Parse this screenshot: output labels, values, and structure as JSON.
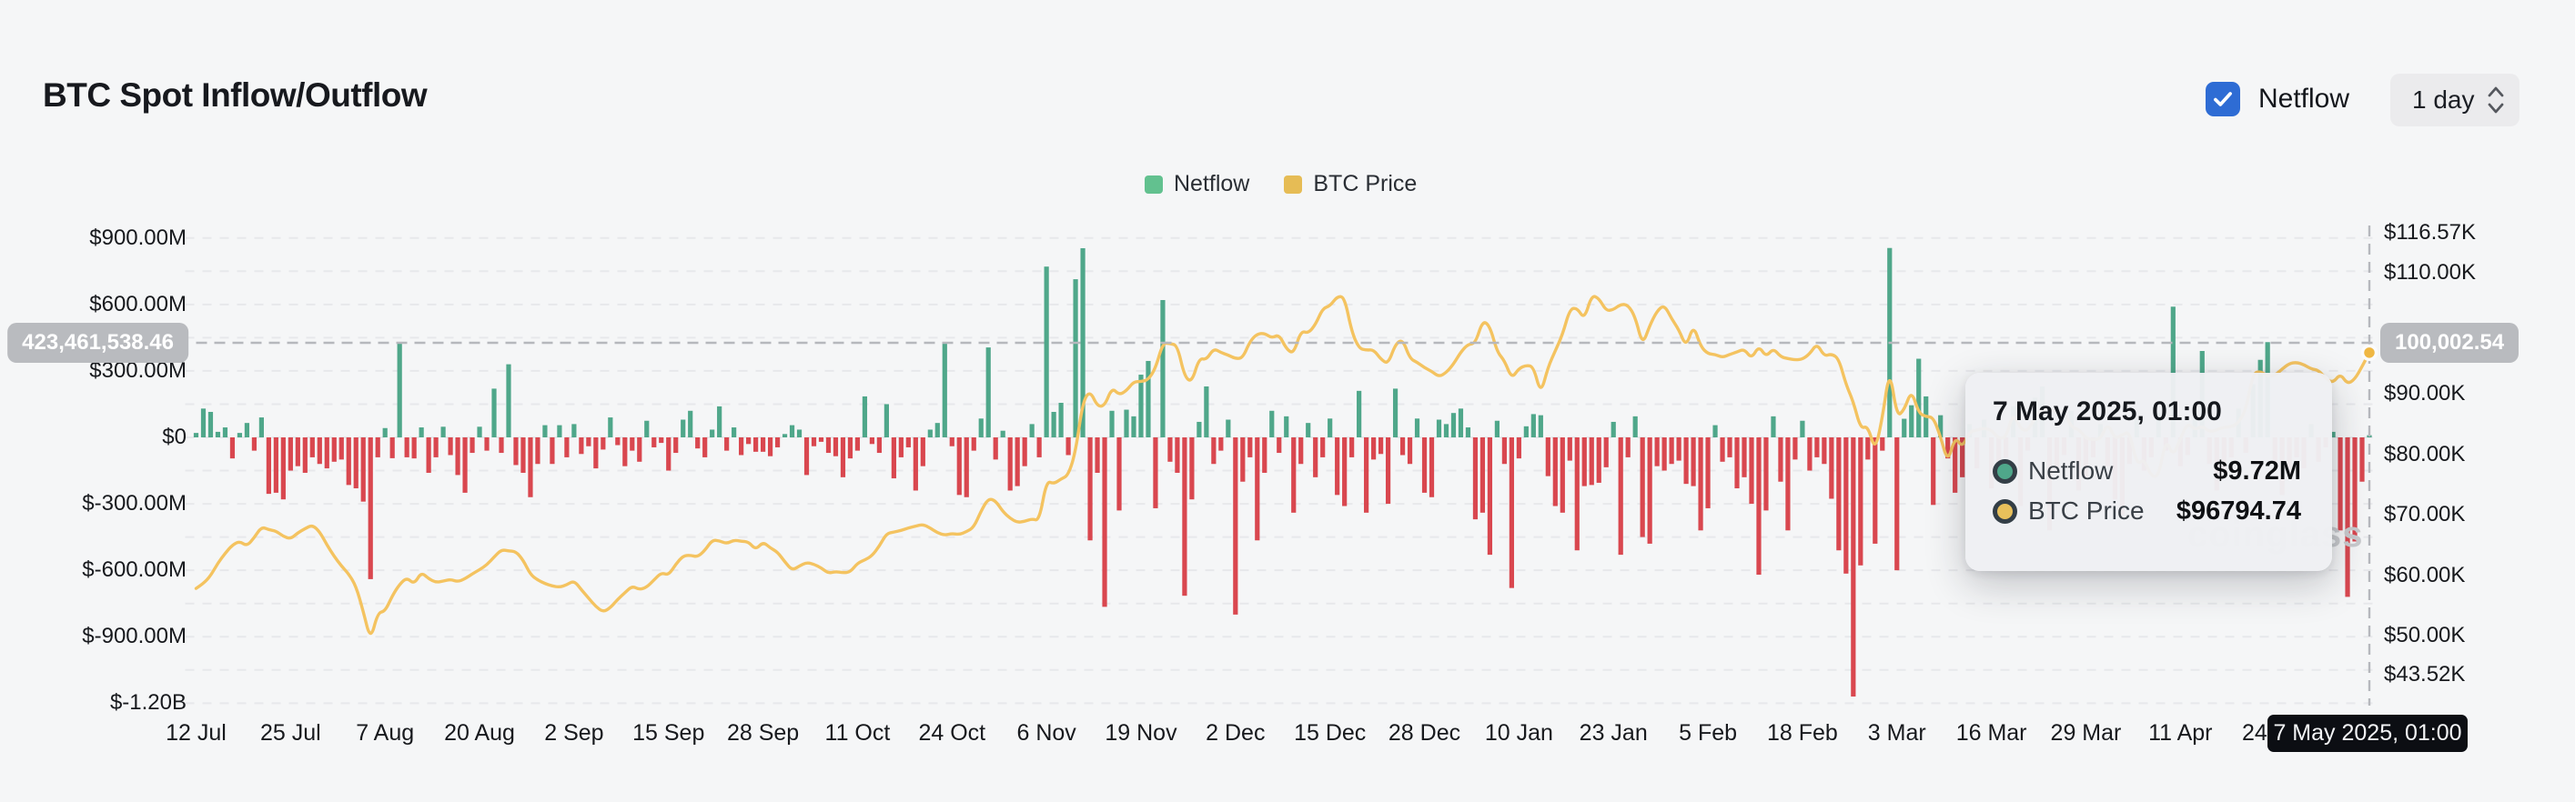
{
  "header": {
    "title": "BTC Spot Inflow/Outflow",
    "netflow_checkbox": {
      "checked": true,
      "label": "Netflow"
    },
    "interval_selector": {
      "value": "1 day"
    }
  },
  "legend": {
    "items": [
      {
        "label": "Netflow",
        "color": "#62c18f"
      },
      {
        "label": "BTC Price",
        "color": "#e6bc55"
      }
    ]
  },
  "watermark": "coinglass",
  "crosshair": {
    "y_left_badge": "423,461,538.46",
    "y_right_badge": "100,002.54",
    "x_badge": "7 May 2025, 01:00"
  },
  "tooltip": {
    "title": "7 May 2025, 01:00",
    "rows": [
      {
        "series": "Netflow",
        "value": "$9.72M",
        "marker_color": "#4fa78a"
      },
      {
        "series": "BTC Price",
        "value": "$96794.74",
        "marker_color": "#e8c05b"
      }
    ]
  },
  "axes": {
    "left": {
      "ticks": [
        {
          "label": "$900.00M",
          "value": 900
        },
        {
          "label": "$600.00M",
          "value": 600
        },
        {
          "label": "$300.00M",
          "value": 300
        },
        {
          "label": "$0",
          "value": 0
        },
        {
          "label": "$-300.00M",
          "value": -300
        },
        {
          "label": "$-600.00M",
          "value": -600
        },
        {
          "label": "$-900.00M",
          "value": -900
        },
        {
          "label": "$-1.20B",
          "value": -1200
        }
      ]
    },
    "right": {
      "ticks": [
        {
          "label": "$116.57K",
          "value": 116.57
        },
        {
          "label": "$110.00K",
          "value": 110
        },
        {
          "label": "$100.00K",
          "value": 100
        },
        {
          "label": "$90.00K",
          "value": 90
        },
        {
          "label": "$80.00K",
          "value": 80
        },
        {
          "label": "$70.00K",
          "value": 70
        },
        {
          "label": "$60.00K",
          "value": 60
        },
        {
          "label": "$50.00K",
          "value": 50
        },
        {
          "label": "$43.52K",
          "value": 43.52
        }
      ]
    },
    "x": {
      "ticks": [
        {
          "label": "12 Jul",
          "day": 0
        },
        {
          "label": "25 Jul",
          "day": 13
        },
        {
          "label": "7 Aug",
          "day": 26
        },
        {
          "label": "20 Aug",
          "day": 39
        },
        {
          "label": "2 Sep",
          "day": 52
        },
        {
          "label": "15 Sep",
          "day": 65
        },
        {
          "label": "28 Sep",
          "day": 78
        },
        {
          "label": "11 Oct",
          "day": 91
        },
        {
          "label": "24 Oct",
          "day": 104
        },
        {
          "label": "6 Nov",
          "day": 117
        },
        {
          "label": "19 Nov",
          "day": 130
        },
        {
          "label": "2 Dec",
          "day": 143
        },
        {
          "label": "15 Dec",
          "day": 156
        },
        {
          "label": "28 Dec",
          "day": 169
        },
        {
          "label": "10 Jan",
          "day": 182
        },
        {
          "label": "23 Jan",
          "day": 195
        },
        {
          "label": "5 Feb",
          "day": 208
        },
        {
          "label": "18 Feb",
          "day": 221
        },
        {
          "label": "3 Mar",
          "day": 234
        },
        {
          "label": "16 Mar",
          "day": 247
        },
        {
          "label": "29 Mar",
          "day": 260
        },
        {
          "label": "11 Apr",
          "day": 273
        },
        {
          "label": "24 Apr",
          "day": 286
        },
        {
          "label": "7 May",
          "day": 299
        }
      ]
    }
  },
  "chart_data": {
    "type": "combo",
    "title": "BTC Spot Inflow/Outflow",
    "x_start": "12 Jul 2024",
    "x_end": "7 May 2025, 01:00",
    "interval": "1 day",
    "grid": {
      "dashed": true,
      "minor_step_m": 150
    },
    "left_axis": {
      "unit": "USD millions",
      "min": -1200,
      "max": 900,
      "label_step": 300
    },
    "right_axis": {
      "unit": "USD thousands",
      "min": 43.52,
      "max": 116.57
    },
    "legend_position": "top-center",
    "hover": {
      "day_index": 299,
      "date": "7 May 2025, 01:00",
      "netflow": "$9.72M",
      "btc_price": "$96794.74",
      "crosshair_left_m": 423.46153846,
      "crosshair_right_usd": 100002.54
    },
    "series": [
      {
        "name": "Netflow",
        "type": "bar",
        "unit": "USD millions",
        "positive_color": "#4fa78a",
        "negative_color": "#d9474f",
        "values": [
          20,
          130,
          115,
          25,
          45,
          -95,
          20,
          65,
          -60,
          90,
          -255,
          -250,
          -280,
          -150,
          -130,
          -160,
          -90,
          -120,
          -140,
          -110,
          -100,
          -215,
          -230,
          -290,
          -640,
          -90,
          42,
          -94,
          430,
          -90,
          -95,
          45,
          -160,
          -90,
          48,
          -80,
          -170,
          -250,
          -70,
          48,
          -60,
          220,
          -70,
          330,
          -125,
          -160,
          -270,
          -120,
          55,
          -120,
          55,
          -90,
          60,
          -75,
          -40,
          -140,
          -55,
          90,
          -35,
          -130,
          -60,
          -110,
          75,
          -45,
          -25,
          -150,
          -70,
          80,
          120,
          -50,
          -90,
          35,
          140,
          -60,
          45,
          -80,
          -30,
          -65,
          -65,
          -85,
          -45,
          15,
          55,
          35,
          -170,
          -40,
          -20,
          -70,
          -85,
          -180,
          -95,
          -60,
          185,
          -30,
          -70,
          150,
          -185,
          -90,
          -45,
          -240,
          -130,
          35,
          65,
          430,
          -40,
          -260,
          -270,
          -60,
          85,
          406,
          -100,
          30,
          -240,
          -220,
          -130,
          60,
          -90,
          771,
          115,
          156,
          -80,
          714,
          854,
          -465,
          -160,
          -765,
          120,
          -330,
          125,
          95,
          283,
          345,
          -320,
          620,
          -110,
          -160,
          -715,
          -280,
          70,
          230,
          -120,
          -60,
          80,
          -800,
          -200,
          -90,
          -465,
          -160,
          120,
          -70,
          95,
          -340,
          -120,
          65,
          -180,
          -90,
          85,
          -260,
          -310,
          -90,
          210,
          -340,
          -100,
          -75,
          -300,
          220,
          -80,
          -120,
          85,
          -250,
          -270,
          80,
          60,
          110,
          130,
          45,
          -370,
          -340,
          -530,
          75,
          -120,
          -680,
          -95,
          50,
          105,
          100,
          -175,
          -310,
          -340,
          -105,
          -510,
          -220,
          -215,
          -205,
          -135,
          70,
          -530,
          -90,
          95,
          -450,
          -480,
          -130,
          -150,
          -120,
          -105,
          -210,
          -220,
          -420,
          -320,
          55,
          -110,
          -90,
          -230,
          -180,
          -300,
          -620,
          -330,
          95,
          -200,
          -420,
          -100,
          75,
          -150,
          -90,
          -120,
          -277,
          -510,
          -615,
          -1170,
          -578,
          -100,
          -480,
          -60,
          855,
          -600,
          84,
          145,
          355,
          185,
          -305,
          100,
          -95,
          -250,
          -180,
          60,
          -140,
          80,
          -230,
          -120,
          -90,
          140,
          -310,
          -60,
          180,
          230,
          -420,
          -150,
          -80,
          120,
          -240,
          -180,
          -90,
          60,
          -130,
          -280,
          -350,
          -120,
          80,
          -150,
          -90,
          110,
          -60,
          590,
          -130,
          -80,
          140,
          390,
          -120,
          -240,
          -160,
          -90,
          130,
          -70,
          240,
          350,
          430,
          -120,
          -260,
          -180,
          -90,
          -140,
          60,
          -110,
          -45,
          25,
          -420,
          -720,
          -470,
          -200,
          9.72
        ]
      },
      {
        "name": "BTC Price",
        "type": "line",
        "unit": "USD thousands",
        "color": "#f4c360",
        "values": [
          57.8,
          58.6,
          59.9,
          62.0,
          63.6,
          65.0,
          65.6,
          64.8,
          66.2,
          68.0,
          67.5,
          67.3,
          66.4,
          66.0,
          67.0,
          67.7,
          68.3,
          67.2,
          65.0,
          63.1,
          61.5,
          60.2,
          58.2,
          54.0,
          49.2,
          53.8,
          54.0,
          56.6,
          58.5,
          59.6,
          58.5,
          60.5,
          59.4,
          58.8,
          59.0,
          59.3,
          58.9,
          59.4,
          60.2,
          60.9,
          61.7,
          63.0,
          64.2,
          64.0,
          63.9,
          62.5,
          60.1,
          59.2,
          58.6,
          58.2,
          58.0,
          58.4,
          59.1,
          57.6,
          56.2,
          54.8,
          53.9,
          54.6,
          56.0,
          57.1,
          58.2,
          57.6,
          58.0,
          59.2,
          60.4,
          60.0,
          61.8,
          63.2,
          63.3,
          63.0,
          64.1,
          65.8,
          65.7,
          65.2,
          65.8,
          65.6,
          65.5,
          64.2,
          65.5,
          64.5,
          63.8,
          62.2,
          60.8,
          61.5,
          62.1,
          61.8,
          61.2,
          60.3,
          60.6,
          60.4,
          60.5,
          62.0,
          62.5,
          63.2,
          64.8,
          66.9,
          67.1,
          67.4,
          67.8,
          68.1,
          68.4,
          67.8,
          67.0,
          66.6,
          66.9,
          66.7,
          67.2,
          67.9,
          70.6,
          72.7,
          72.3,
          70.5,
          69.4,
          68.7,
          68.9,
          69.3,
          69.0,
          75.6,
          75.1,
          75.9,
          76.5,
          80.4,
          88.7,
          90.5,
          87.9,
          88.0,
          91.0,
          89.8,
          90.5,
          92.0,
          92.0,
          92.3,
          94.2,
          98.4,
          98.3,
          98.0,
          92.8,
          91.9,
          95.9,
          95.6,
          97.5,
          96.8,
          96.4,
          95.8,
          95.9,
          98.7,
          99.9,
          100.0,
          99.2,
          99.8,
          97.4,
          96.6,
          100.4,
          100.0,
          101.4,
          104.1,
          104.5,
          106.1,
          106.0,
          100.2,
          97.5,
          97.2,
          97.3,
          95.7,
          94.9,
          98.2,
          99.0,
          95.8,
          95.2,
          94.3,
          93.7,
          92.8,
          93.5,
          94.9,
          96.9,
          98.2,
          98.3,
          102.1,
          101.2,
          96.9,
          95.5,
          92.5,
          94.2,
          94.7,
          94.5,
          89.9,
          94.4,
          97.1,
          99.8,
          104.0,
          104.2,
          102.3,
          106.3,
          105.8,
          103.7,
          103.9,
          104.8,
          104.7,
          102.7,
          98.0,
          101.3,
          103.7,
          104.7,
          102.4,
          100.6,
          97.7,
          101.4,
          97.8,
          96.6,
          96.5,
          96.0,
          96.5,
          96.9,
          97.4,
          95.8,
          97.9,
          96.1,
          97.5,
          96.1,
          95.8,
          95.6,
          95.7,
          96.6,
          98.3,
          96.2,
          96.6,
          95.8,
          91.5,
          88.7,
          84.2,
          84.7,
          80.5,
          86.0,
          94.2,
          86.2,
          87.3,
          90.6,
          86.8,
          86.2,
          86.1,
          82.9,
          78.6,
          82.9,
          81.1,
          83.7,
          84.0,
          84.3,
          84.0,
          82.6,
          82.7,
          86.9,
          84.2,
          83.8,
          86.1,
          87.5,
          87.5,
          86.9,
          87.2,
          84.4,
          84.2,
          82.6,
          82.4,
          82.5,
          85.2,
          82.5,
          83.2,
          83.8,
          78.2,
          79.2,
          76.3,
          76.3,
          82.6,
          79.6,
          82.6,
          85.2,
          84.0,
          84.7,
          83.7,
          84.0,
          84.5,
          84.5,
          85.2,
          87.3,
          93.4,
          93.7,
          92.9,
          93.0,
          94.1,
          95.0,
          95.2,
          94.8,
          94.1,
          93.9,
          92.5,
          91.8,
          93.3,
          91.6,
          92.4,
          94.5,
          96.79
        ]
      }
    ]
  }
}
